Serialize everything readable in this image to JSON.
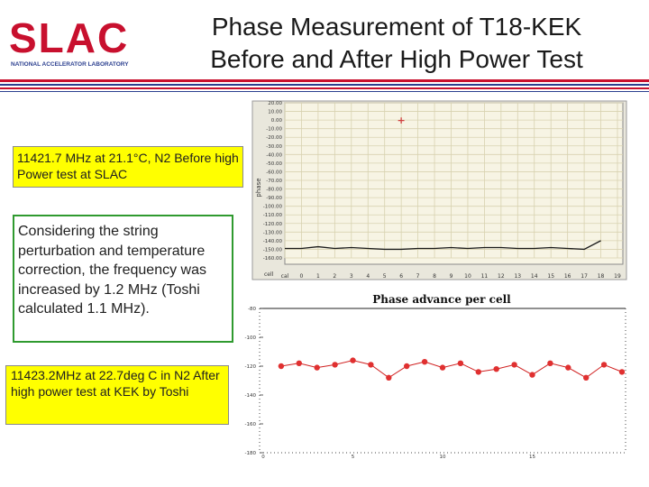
{
  "logo": {
    "text": "SLAC",
    "subtitle": "NATIONAL ACCELERATOR LABORATORY",
    "colors": {
      "red": "#c8102e",
      "navy": "#2b3f8f"
    }
  },
  "title": {
    "line1": "Phase Measurement of T18-KEK",
    "line2": "Before and After High Power Test"
  },
  "notes": {
    "before": "11421.7 MHz at 21.1°C, N2 Before high Power test  at SLAC",
    "consider": "Considering the string perturbation and temperature correction, the frequency was increased by 1.2 MHz (Toshi calculated 1.1 MHz).",
    "after": "11423.2MHz at 22.7deg C in N2 After high power test at KEK by Toshi"
  },
  "chart_data": [
    {
      "type": "line",
      "title": "",
      "ylabel": "phase",
      "xlabel": "cell",
      "grid": true,
      "background": "#f7f4e4",
      "line_color": "#1a1a1a",
      "ylim": [
        -160,
        20
      ],
      "y_tick_labels": [
        "20.00",
        "10.00",
        "0.00",
        "-10.00",
        "-20.00",
        "-30.00",
        "-40.00",
        "-50.00",
        "-60.00",
        "-70.00",
        "-80.00",
        "-90.00",
        "-100.00",
        "-110.00",
        "-120.00",
        "-130.00",
        "-140.00",
        "-150.00",
        "-160.00"
      ],
      "x_tick_labels": [
        "cal",
        "0",
        "1",
        "2",
        "3",
        "4",
        "5",
        "6",
        "7",
        "8",
        "9",
        "10",
        "11",
        "12",
        "13",
        "14",
        "15",
        "16",
        "17",
        "18",
        "19"
      ],
      "marker_label": "+",
      "marker": {
        "x": 7,
        "y": 0.0
      },
      "series": [
        {
          "values": [
            -149,
            -149,
            -147,
            -149,
            -148,
            -149,
            -150,
            -150,
            -149,
            -149,
            -148,
            -149,
            -148,
            -148,
            -149,
            -149,
            -148,
            -149,
            -150,
            -140
          ]
        }
      ]
    },
    {
      "type": "line",
      "title": "Phase advance per cell",
      "xlabel": "",
      "ylabel": "",
      "line_color": "#d02020",
      "point_color": "#e03030",
      "ylim": [
        -180,
        -80
      ],
      "xlim": [
        0,
        20
      ],
      "y_ticks": [
        -80,
        -100,
        -120,
        -140,
        -160,
        -180
      ],
      "y_tick_labels": [
        "-80",
        "-100",
        "-120",
        "-140",
        "-160",
        "-180"
      ],
      "x_ticks": [
        0,
        5,
        10,
        15
      ],
      "x_tick_labels": [
        "0",
        "5",
        "10",
        "15"
      ],
      "series": [
        {
          "x": [
            1,
            2,
            3,
            4,
            5,
            6,
            7,
            8,
            9,
            10,
            11,
            12,
            13,
            14,
            15,
            16,
            17,
            18,
            19,
            20
          ],
          "values": [
            -120,
            -118,
            -121,
            -119,
            -116,
            -119,
            -128,
            -120,
            -117,
            -121,
            -118,
            -124,
            -122,
            -119,
            -126,
            -118,
            -121,
            -128,
            -119,
            -124
          ]
        }
      ]
    }
  ]
}
